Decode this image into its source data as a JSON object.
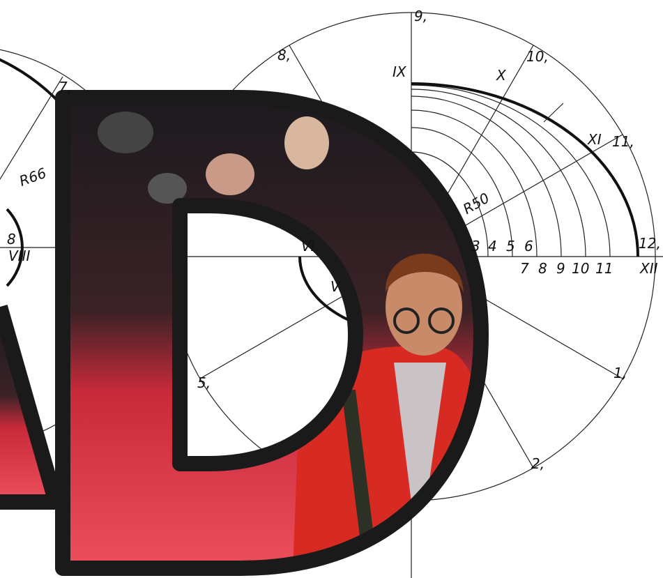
{
  "left_drawing": {
    "labels": [
      "R66",
      "7,",
      "8",
      "VIII"
    ]
  },
  "right_drawing": {
    "labels": [
      "9,",
      "8,",
      "10,",
      "IX",
      "X",
      "XI",
      "11,",
      "R50",
      "3",
      "4",
      "5",
      "6",
      "7",
      "8",
      "9",
      "10",
      "11",
      "12,",
      "XII",
      "1,",
      "2,",
      "5,",
      "VI",
      "V"
    ]
  }
}
